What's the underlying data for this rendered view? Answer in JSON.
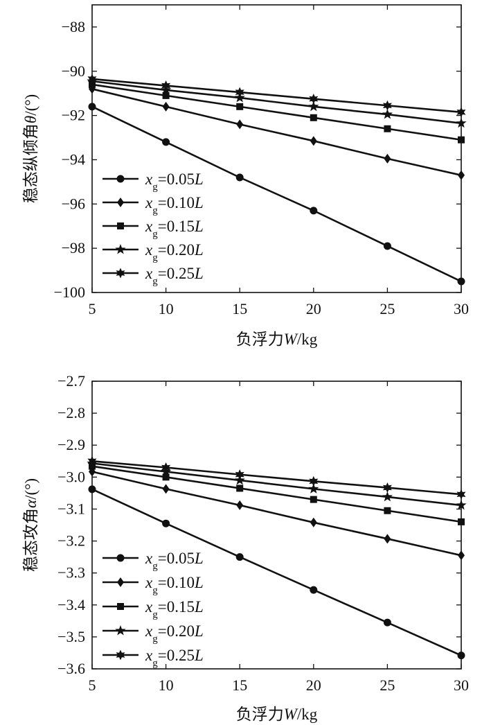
{
  "chart_data": [
    {
      "type": "line",
      "x": [
        5,
        10,
        15,
        20,
        25,
        30
      ],
      "xlim": [
        5,
        30
      ],
      "ylim": [
        -100,
        -87
      ],
      "xticks": [
        5,
        10,
        15,
        20,
        25,
        30
      ],
      "yticks": [
        -100,
        -98,
        -96,
        -94,
        -92,
        -90,
        -88
      ],
      "ytick_labels": [
        "−100",
        "−98",
        "−96",
        "−94",
        "−92",
        "−90",
        "−88"
      ],
      "xlabel_prefix": "负浮力",
      "xlabel_var": "W",
      "xlabel_unit": "/kg",
      "ylabel_prefix": "稳态纵倾角",
      "ylabel_var": "θ",
      "ylabel_unit": "/(°)",
      "legend_position": "bottom-left",
      "series": [
        {
          "name": "0.05L",
          "coef": "0.05",
          "var": "x",
          "sub": "g",
          "unit": "L",
          "marker": "circle",
          "values": [
            -91.6,
            -93.2,
            -94.8,
            -96.3,
            -97.9,
            -99.5
          ]
        },
        {
          "name": "0.10L",
          "coef": "0.10",
          "var": "x",
          "sub": "g",
          "unit": "L",
          "marker": "diamond",
          "values": [
            -90.8,
            -91.6,
            -92.4,
            -93.15,
            -93.95,
            -94.7
          ]
        },
        {
          "name": "0.15L",
          "coef": "0.15",
          "var": "x",
          "sub": "g",
          "unit": "L",
          "marker": "square",
          "values": [
            -90.6,
            -91.1,
            -91.6,
            -92.1,
            -92.6,
            -93.1
          ]
        },
        {
          "name": "0.20L",
          "coef": "0.20",
          "var": "x",
          "sub": "g",
          "unit": "L",
          "marker": "star5",
          "values": [
            -90.45,
            -90.85,
            -91.2,
            -91.6,
            -91.95,
            -92.35
          ]
        },
        {
          "name": "0.25L",
          "coef": "0.25",
          "var": "x",
          "sub": "g",
          "unit": "L",
          "marker": "star6",
          "values": [
            -90.35,
            -90.65,
            -90.95,
            -91.25,
            -91.55,
            -91.85
          ]
        }
      ]
    },
    {
      "type": "line",
      "x": [
        5,
        10,
        15,
        20,
        25,
        30
      ],
      "xlim": [
        5,
        30
      ],
      "ylim": [
        -3.6,
        -2.7
      ],
      "xticks": [
        5,
        10,
        15,
        20,
        25,
        30
      ],
      "yticks": [
        -3.6,
        -3.5,
        -3.4,
        -3.3,
        -3.2,
        -3.1,
        -3.0,
        -2.9,
        -2.8,
        -2.7
      ],
      "ytick_labels": [
        "−3.6",
        "−3.5",
        "−3.4",
        "−3.3",
        "−3.2",
        "−3.1",
        "−3.0",
        "−2.9",
        "−2.8",
        "−2.7"
      ],
      "xlabel_prefix": "负浮力",
      "xlabel_var": "W",
      "xlabel_unit": "/kg",
      "ylabel_prefix": "稳态攻角",
      "ylabel_var": "α",
      "ylabel_unit": "/(°)",
      "legend_position": "bottom-left",
      "series": [
        {
          "name": "0.05L",
          "coef": "0.05",
          "var": "x",
          "sub": "g",
          "unit": "L",
          "marker": "circle",
          "values": [
            -3.038,
            -3.145,
            -3.25,
            -3.353,
            -3.455,
            -3.558
          ]
        },
        {
          "name": "0.10L",
          "coef": "0.10",
          "var": "x",
          "sub": "g",
          "unit": "L",
          "marker": "diamond",
          "values": [
            -2.983,
            -3.037,
            -3.088,
            -3.142,
            -3.193,
            -3.245
          ]
        },
        {
          "name": "0.15L",
          "coef": "0.15",
          "var": "x",
          "sub": "g",
          "unit": "L",
          "marker": "square",
          "values": [
            -2.966,
            -3.0,
            -3.035,
            -3.07,
            -3.105,
            -3.14
          ]
        },
        {
          "name": "0.20L",
          "coef": "0.20",
          "var": "x",
          "sub": "g",
          "unit": "L",
          "marker": "star5",
          "values": [
            -2.957,
            -2.983,
            -3.01,
            -3.037,
            -3.062,
            -3.088
          ]
        },
        {
          "name": "0.25L",
          "coef": "0.25",
          "var": "x",
          "sub": "g",
          "unit": "L",
          "marker": "star6",
          "values": [
            -2.95,
            -2.97,
            -2.992,
            -3.013,
            -3.033,
            -3.054
          ]
        }
      ]
    }
  ]
}
